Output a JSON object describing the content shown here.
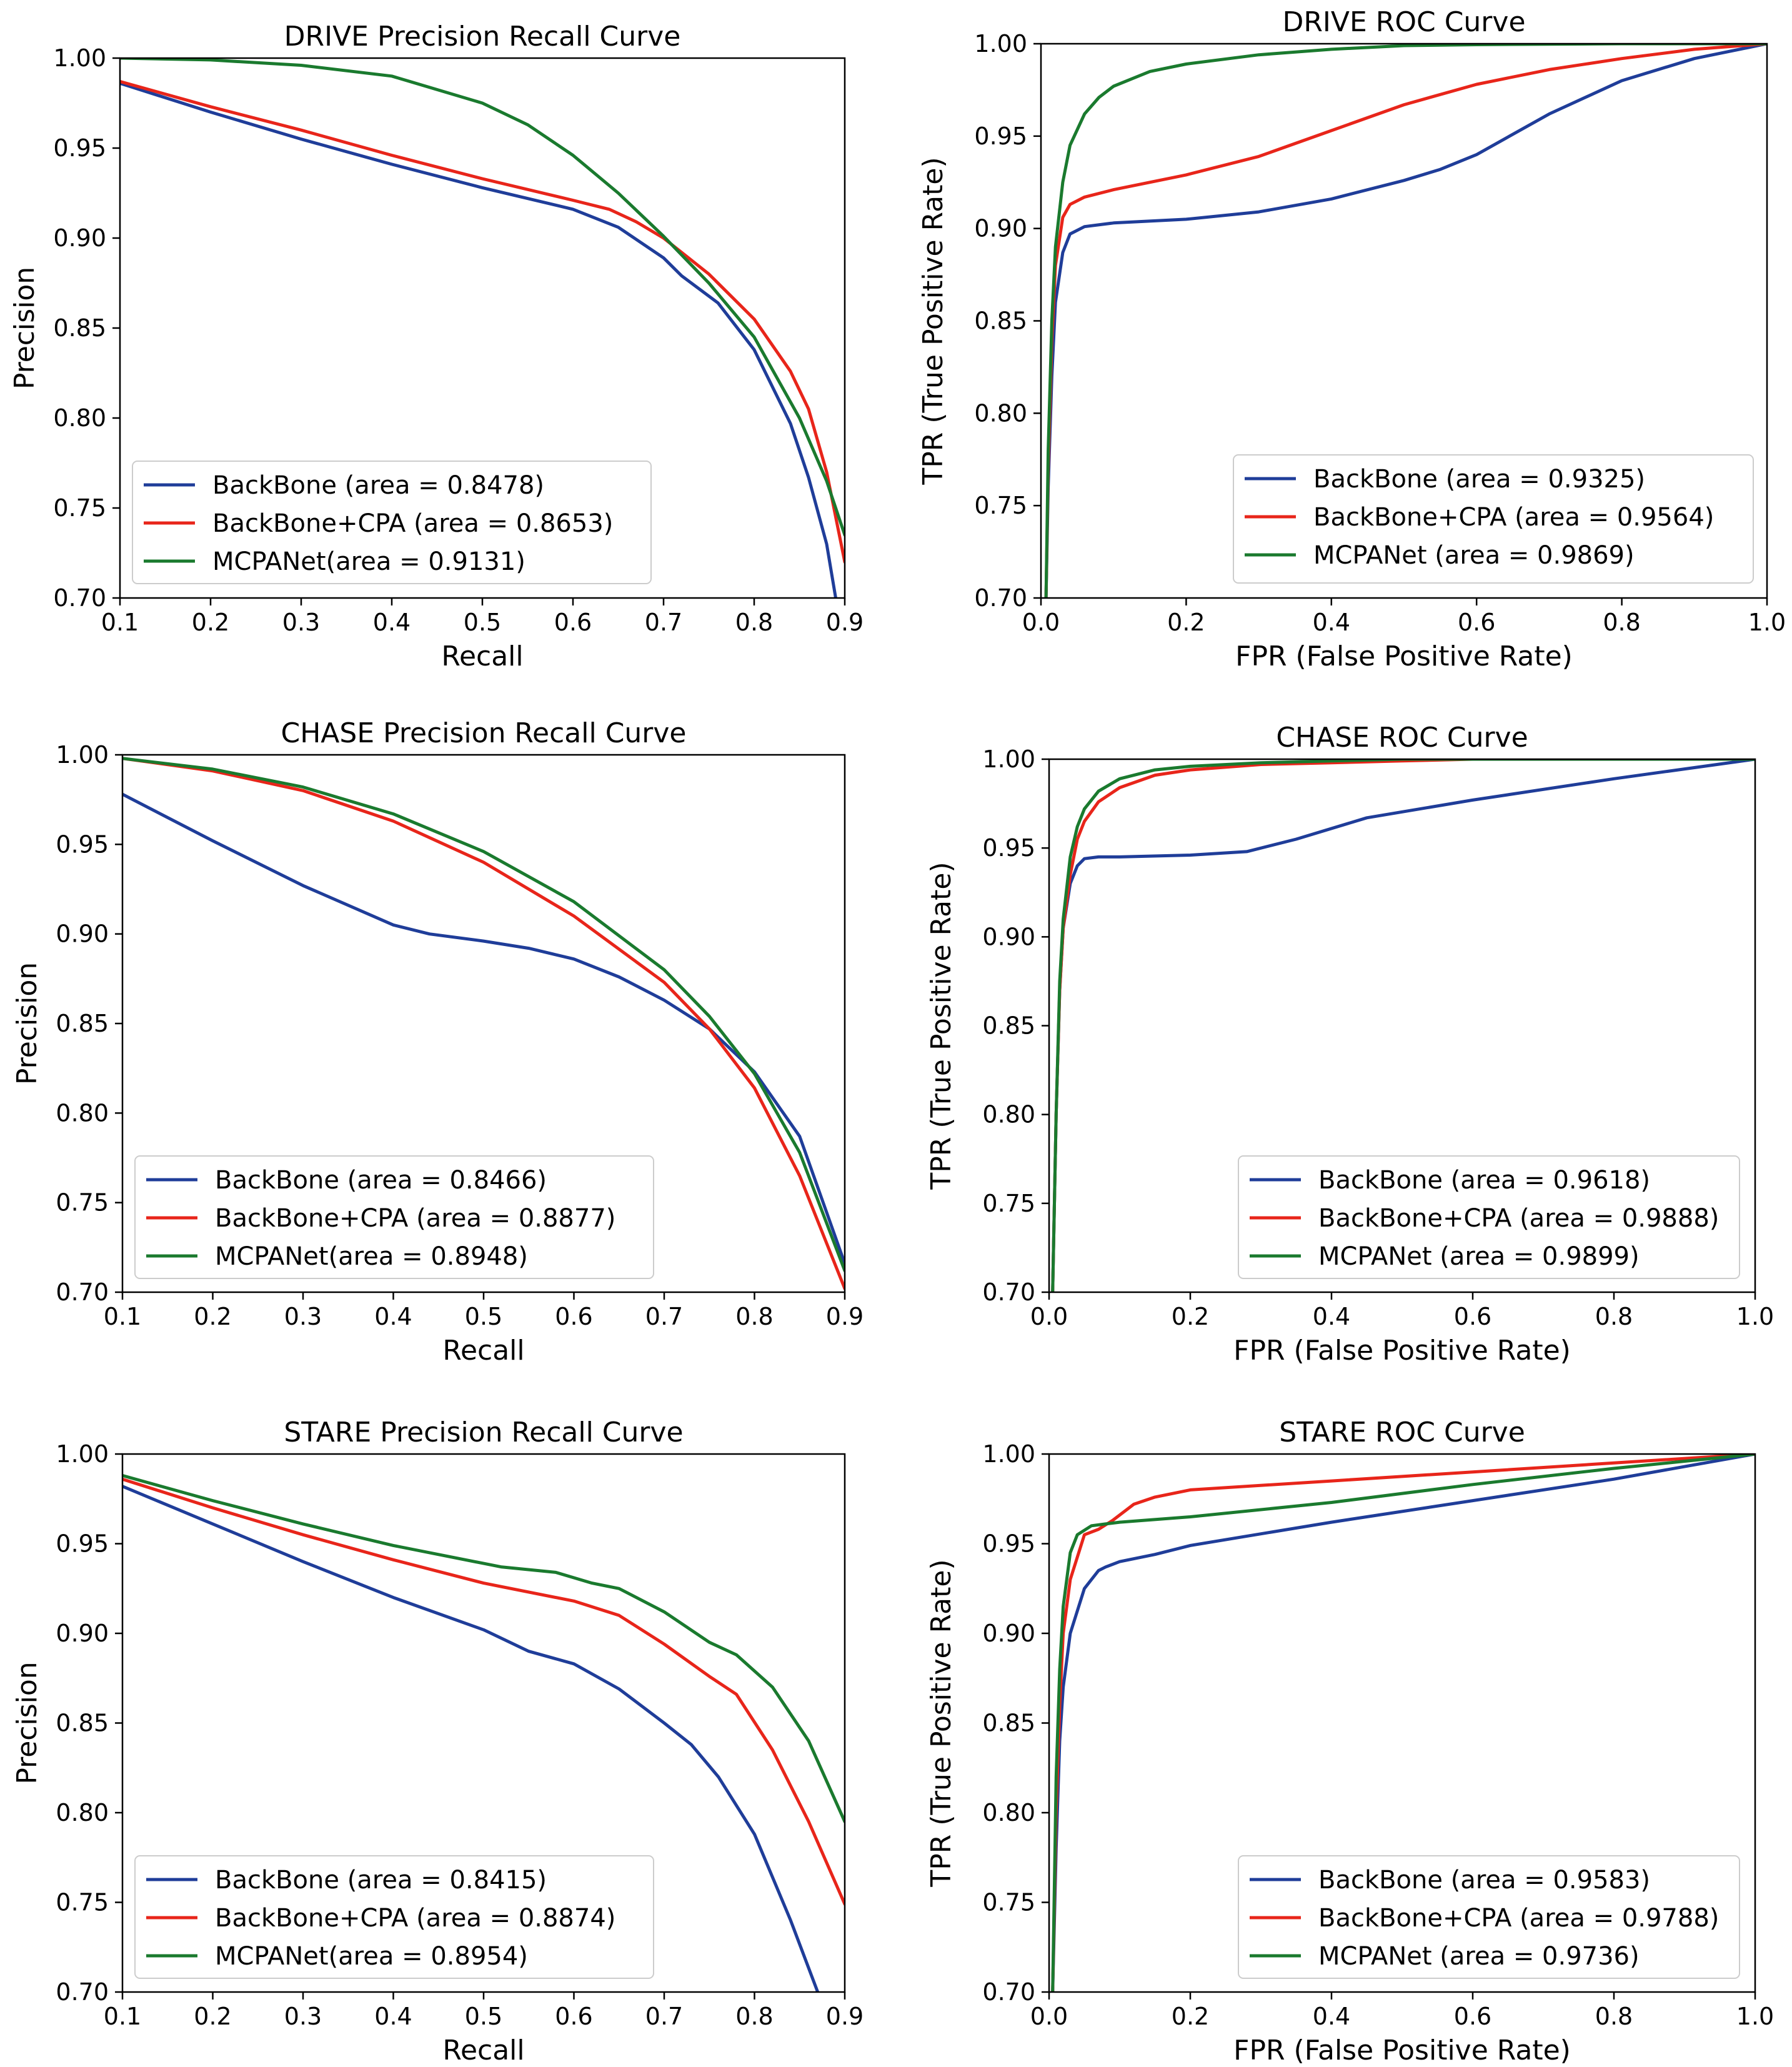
{
  "chart_data": [
    {
      "type": "line",
      "title": "DRIVE Precision Recall Curve",
      "xlabel": "Recall",
      "ylabel": "Precision",
      "xlim": [
        0.1,
        0.9
      ],
      "ylim": [
        0.7,
        1.0
      ],
      "xticks": [
        "0.1",
        "0.2",
        "0.3",
        "0.4",
        "0.5",
        "0.6",
        "0.7",
        "0.8",
        "0.9"
      ],
      "yticks": [
        "0.70",
        "0.75",
        "0.80",
        "0.85",
        "0.90",
        "0.95",
        "1.00"
      ],
      "legend_position": "lower-left",
      "series": [
        {
          "name": "BackBone (area = 0.8478)",
          "color": "#1f3d99",
          "x": [
            0.1,
            0.2,
            0.3,
            0.4,
            0.5,
            0.6,
            0.65,
            0.7,
            0.72,
            0.76,
            0.8,
            0.84,
            0.86,
            0.88,
            0.89
          ],
          "y": [
            0.986,
            0.97,
            0.955,
            0.941,
            0.928,
            0.916,
            0.906,
            0.889,
            0.879,
            0.864,
            0.838,
            0.797,
            0.767,
            0.73,
            0.7
          ]
        },
        {
          "name": "BackBone+CPA (area = 0.8653)",
          "color": "#e8251a",
          "x": [
            0.1,
            0.2,
            0.3,
            0.4,
            0.5,
            0.6,
            0.64,
            0.67,
            0.7,
            0.75,
            0.8,
            0.84,
            0.86,
            0.88,
            0.9
          ],
          "y": [
            0.987,
            0.973,
            0.96,
            0.946,
            0.933,
            0.921,
            0.916,
            0.909,
            0.9,
            0.88,
            0.855,
            0.826,
            0.805,
            0.77,
            0.72
          ]
        },
        {
          "name": "MCPANet(area = 0.9131)",
          "color": "#1a7a2e",
          "x": [
            0.1,
            0.2,
            0.3,
            0.4,
            0.5,
            0.55,
            0.6,
            0.65,
            0.7,
            0.75,
            0.8,
            0.85,
            0.88,
            0.9
          ],
          "y": [
            1.0,
            0.999,
            0.996,
            0.99,
            0.975,
            0.963,
            0.946,
            0.925,
            0.901,
            0.875,
            0.845,
            0.8,
            0.765,
            0.735
          ]
        }
      ]
    },
    {
      "type": "line",
      "title": "DRIVE  ROC Curve",
      "xlabel": "FPR (False Positive Rate)",
      "ylabel": "TPR (True Positive Rate)",
      "xlim": [
        0.0,
        1.0
      ],
      "ylim": [
        0.7,
        1.0
      ],
      "xticks": [
        "0.0",
        "0.2",
        "0.4",
        "0.6",
        "0.8",
        "1.0"
      ],
      "yticks": [
        "0.70",
        "0.75",
        "0.80",
        "0.85",
        "0.90",
        "0.95",
        "1.00"
      ],
      "legend_position": "lower-right",
      "series": [
        {
          "name": "BackBone (area = 0.9325)",
          "color": "#1f3d99",
          "x": [
            0.007,
            0.01,
            0.015,
            0.02,
            0.03,
            0.04,
            0.06,
            0.1,
            0.2,
            0.3,
            0.4,
            0.5,
            0.55,
            0.6,
            0.7,
            0.8,
            0.9,
            1.0
          ],
          "y": [
            0.7,
            0.76,
            0.82,
            0.86,
            0.887,
            0.897,
            0.901,
            0.903,
            0.905,
            0.909,
            0.916,
            0.926,
            0.932,
            0.94,
            0.962,
            0.98,
            0.992,
            1.0
          ]
        },
        {
          "name": "BackBone+CPA (area = 0.9564)",
          "color": "#e8251a",
          "x": [
            0.007,
            0.01,
            0.015,
            0.02,
            0.03,
            0.04,
            0.06,
            0.1,
            0.2,
            0.3,
            0.4,
            0.5,
            0.6,
            0.7,
            0.8,
            0.9,
            1.0
          ],
          "y": [
            0.7,
            0.77,
            0.84,
            0.88,
            0.906,
            0.913,
            0.917,
            0.921,
            0.929,
            0.939,
            0.953,
            0.967,
            0.978,
            0.986,
            0.992,
            0.997,
            1.0
          ]
        },
        {
          "name": "MCPANet (area = 0.9869)",
          "color": "#1a7a2e",
          "x": [
            0.007,
            0.01,
            0.015,
            0.02,
            0.03,
            0.04,
            0.06,
            0.08,
            0.1,
            0.15,
            0.2,
            0.3,
            0.4,
            0.5,
            0.6,
            0.8,
            1.0
          ],
          "y": [
            0.7,
            0.78,
            0.85,
            0.89,
            0.925,
            0.945,
            0.962,
            0.971,
            0.977,
            0.985,
            0.989,
            0.994,
            0.997,
            0.999,
            0.9995,
            1.0,
            1.0
          ]
        }
      ]
    },
    {
      "type": "line",
      "title": "CHASE Precision Recall Curve",
      "xlabel": "Recall",
      "ylabel": "Precision",
      "xlim": [
        0.1,
        0.9
      ],
      "ylim": [
        0.7,
        1.0
      ],
      "xticks": [
        "0.1",
        "0.2",
        "0.3",
        "0.4",
        "0.5",
        "0.6",
        "0.7",
        "0.8",
        "0.9"
      ],
      "yticks": [
        "0.70",
        "0.75",
        "0.80",
        "0.85",
        "0.90",
        "0.95",
        "1.00"
      ],
      "legend_position": "lower-left",
      "series": [
        {
          "name": "BackBone (area = 0.8466)",
          "color": "#1f3d99",
          "x": [
            0.1,
            0.2,
            0.3,
            0.4,
            0.44,
            0.5,
            0.55,
            0.6,
            0.65,
            0.7,
            0.75,
            0.8,
            0.85,
            0.9
          ],
          "y": [
            0.978,
            0.952,
            0.927,
            0.905,
            0.9,
            0.896,
            0.892,
            0.886,
            0.876,
            0.863,
            0.847,
            0.823,
            0.787,
            0.716
          ]
        },
        {
          "name": "BackBone+CPA (area = 0.8877)",
          "color": "#e8251a",
          "x": [
            0.1,
            0.2,
            0.3,
            0.4,
            0.5,
            0.6,
            0.7,
            0.75,
            0.8,
            0.85,
            0.9
          ],
          "y": [
            0.998,
            0.991,
            0.98,
            0.963,
            0.94,
            0.91,
            0.873,
            0.847,
            0.814,
            0.765,
            0.702
          ]
        },
        {
          "name": "MCPANet(area = 0.8948)",
          "color": "#1a7a2e",
          "x": [
            0.1,
            0.2,
            0.3,
            0.4,
            0.5,
            0.6,
            0.7,
            0.75,
            0.8,
            0.85,
            0.9
          ],
          "y": [
            0.998,
            0.992,
            0.982,
            0.967,
            0.946,
            0.918,
            0.88,
            0.854,
            0.822,
            0.778,
            0.712
          ]
        }
      ]
    },
    {
      "type": "line",
      "title": "CHASE  ROC Curve",
      "xlabel": "FPR (False Positive Rate)",
      "ylabel": "TPR (True Positive Rate)",
      "xlim": [
        0.0,
        1.0
      ],
      "ylim": [
        0.7,
        1.0
      ],
      "xticks": [
        "0.0",
        "0.2",
        "0.4",
        "0.6",
        "0.8",
        "1.0"
      ],
      "yticks": [
        "0.70",
        "0.75",
        "0.80",
        "0.85",
        "0.90",
        "0.95",
        "1.00"
      ],
      "legend_position": "lower-right",
      "series": [
        {
          "name": "BackBone (area = 0.9618)",
          "color": "#1f3d99",
          "x": [
            0.005,
            0.01,
            0.015,
            0.02,
            0.03,
            0.04,
            0.05,
            0.07,
            0.1,
            0.2,
            0.28,
            0.35,
            0.45,
            0.6,
            0.8,
            1.0
          ],
          "y": [
            0.7,
            0.8,
            0.87,
            0.905,
            0.93,
            0.94,
            0.944,
            0.945,
            0.945,
            0.946,
            0.948,
            0.955,
            0.967,
            0.977,
            0.989,
            1.0
          ]
        },
        {
          "name": "BackBone+CPA (area = 0.9888)",
          "color": "#e8251a",
          "x": [
            0.005,
            0.01,
            0.015,
            0.02,
            0.03,
            0.04,
            0.05,
            0.07,
            0.1,
            0.15,
            0.2,
            0.3,
            0.4,
            0.5,
            0.6,
            1.0
          ],
          "y": [
            0.7,
            0.8,
            0.87,
            0.905,
            0.935,
            0.955,
            0.965,
            0.976,
            0.984,
            0.991,
            0.994,
            0.997,
            0.998,
            0.999,
            1.0,
            1.0
          ]
        },
        {
          "name": "MCPANet (area = 0.9899)",
          "color": "#1a7a2e",
          "x": [
            0.005,
            0.01,
            0.015,
            0.02,
            0.03,
            0.04,
            0.05,
            0.07,
            0.1,
            0.15,
            0.2,
            0.3,
            0.4,
            0.5,
            0.6,
            1.0
          ],
          "y": [
            0.7,
            0.8,
            0.875,
            0.91,
            0.945,
            0.962,
            0.972,
            0.982,
            0.989,
            0.994,
            0.996,
            0.998,
            0.999,
            1.0,
            1.0,
            1.0
          ]
        }
      ]
    },
    {
      "type": "line",
      "title": "STARE Precision Recall Curve",
      "xlabel": "Recall",
      "ylabel": "Precision",
      "xlim": [
        0.1,
        0.9
      ],
      "ylim": [
        0.7,
        1.0
      ],
      "xticks": [
        "0.1",
        "0.2",
        "0.3",
        "0.4",
        "0.5",
        "0.6",
        "0.7",
        "0.8",
        "0.9"
      ],
      "yticks": [
        "0.70",
        "0.75",
        "0.80",
        "0.85",
        "0.90",
        "0.95",
        "1.00"
      ],
      "legend_position": "lower-left",
      "series": [
        {
          "name": "BackBone (area = 0.8415)",
          "color": "#1f3d99",
          "x": [
            0.1,
            0.2,
            0.3,
            0.4,
            0.5,
            0.55,
            0.6,
            0.65,
            0.7,
            0.73,
            0.76,
            0.8,
            0.84,
            0.87
          ],
          "y": [
            0.982,
            0.961,
            0.94,
            0.92,
            0.902,
            0.89,
            0.883,
            0.869,
            0.85,
            0.838,
            0.82,
            0.788,
            0.74,
            0.7
          ]
        },
        {
          "name": "BackBone+CPA (area = 0.8874)",
          "color": "#e8251a",
          "x": [
            0.1,
            0.2,
            0.3,
            0.4,
            0.5,
            0.6,
            0.65,
            0.7,
            0.75,
            0.78,
            0.82,
            0.86,
            0.9
          ],
          "y": [
            0.986,
            0.97,
            0.955,
            0.941,
            0.928,
            0.918,
            0.91,
            0.894,
            0.876,
            0.866,
            0.835,
            0.795,
            0.749
          ]
        },
        {
          "name": "MCPANet(area = 0.8954)",
          "color": "#1a7a2e",
          "x": [
            0.1,
            0.2,
            0.3,
            0.4,
            0.5,
            0.52,
            0.58,
            0.6,
            0.62,
            0.65,
            0.7,
            0.75,
            0.78,
            0.82,
            0.86,
            0.9
          ],
          "y": [
            0.988,
            0.974,
            0.961,
            0.949,
            0.939,
            0.937,
            0.934,
            0.931,
            0.928,
            0.925,
            0.912,
            0.895,
            0.888,
            0.87,
            0.84,
            0.795
          ]
        }
      ]
    },
    {
      "type": "line",
      "title": "STARE  ROC Curve",
      "xlabel": "FPR (False Positive Rate)",
      "ylabel": "TPR (True Positive Rate)",
      "xlim": [
        0.0,
        1.0
      ],
      "ylim": [
        0.7,
        1.0
      ],
      "xticks": [
        "0.0",
        "0.2",
        "0.4",
        "0.6",
        "0.8",
        "1.0"
      ],
      "yticks": [
        "0.70",
        "0.75",
        "0.80",
        "0.85",
        "0.90",
        "0.95",
        "1.00"
      ],
      "legend_position": "lower-right",
      "series": [
        {
          "name": "BackBone (area = 0.9583)",
          "color": "#1f3d99",
          "x": [
            0.005,
            0.01,
            0.015,
            0.02,
            0.03,
            0.05,
            0.07,
            0.08,
            0.1,
            0.15,
            0.2,
            0.4,
            0.6,
            0.8,
            1.0
          ],
          "y": [
            0.7,
            0.78,
            0.84,
            0.87,
            0.9,
            0.925,
            0.935,
            0.937,
            0.94,
            0.944,
            0.949,
            0.962,
            0.974,
            0.986,
            1.0
          ]
        },
        {
          "name": "BackBone+CPA (area = 0.9788)",
          "color": "#e8251a",
          "x": [
            0.005,
            0.01,
            0.015,
            0.02,
            0.03,
            0.05,
            0.07,
            0.09,
            0.1,
            0.12,
            0.15,
            0.2,
            0.4,
            0.6,
            0.8,
            1.0
          ],
          "y": [
            0.7,
            0.8,
            0.86,
            0.9,
            0.93,
            0.955,
            0.958,
            0.963,
            0.966,
            0.972,
            0.976,
            0.98,
            0.985,
            0.99,
            0.995,
            1.0
          ]
        },
        {
          "name": "MCPANet (area = 0.9736)",
          "color": "#1a7a2e",
          "x": [
            0.005,
            0.01,
            0.015,
            0.02,
            0.03,
            0.04,
            0.06,
            0.08,
            0.1,
            0.2,
            0.4,
            0.6,
            0.8,
            1.0
          ],
          "y": [
            0.7,
            0.82,
            0.88,
            0.915,
            0.945,
            0.955,
            0.96,
            0.961,
            0.962,
            0.965,
            0.973,
            0.983,
            0.992,
            1.0
          ]
        }
      ]
    }
  ]
}
